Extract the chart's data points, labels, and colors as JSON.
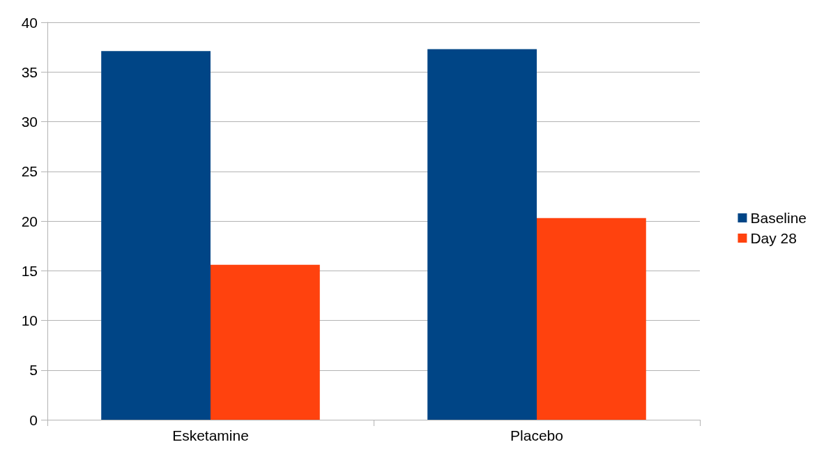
{
  "chart_data": {
    "type": "bar",
    "categories": [
      "Esketamine",
      "Placebo"
    ],
    "series": [
      {
        "name": "Baseline",
        "color": "#004586",
        "values": [
          37.1,
          37.3
        ]
      },
      {
        "name": "Day 28",
        "color": "#ff420e",
        "values": [
          15.6,
          20.3
        ]
      }
    ],
    "ylim": [
      0,
      40
    ],
    "yticks": [
      0,
      5,
      10,
      15,
      20,
      25,
      30,
      35,
      40
    ],
    "grid": "y",
    "legend": "right"
  }
}
